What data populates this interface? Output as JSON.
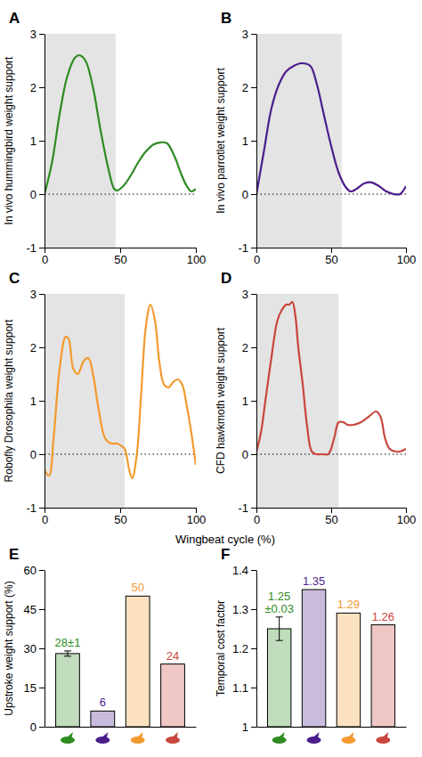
{
  "chart_data": [
    {
      "type": "line",
      "panel": "A",
      "ylabel": "In vivo hummingbird weight support",
      "x": [
        0,
        5,
        10,
        15,
        20,
        23,
        27,
        32,
        37,
        42,
        46,
        48,
        52,
        57,
        62,
        67,
        72,
        77,
        81,
        86,
        90,
        94,
        97,
        100
      ],
      "series": [
        {
          "color": "#2e8b22",
          "values": [
            0,
            0.6,
            1.5,
            2.2,
            2.55,
            2.6,
            2.5,
            2.0,
            1.2,
            0.5,
            0.1,
            0.07,
            0.15,
            0.35,
            0.6,
            0.8,
            0.93,
            0.97,
            0.95,
            0.7,
            0.4,
            0.15,
            0.05,
            0.1
          ]
        }
      ],
      "xlim": [
        0,
        100
      ],
      "xticks": [
        0,
        50,
        100
      ],
      "ylim": [
        -1,
        3
      ],
      "yticks": [
        -1,
        0,
        1,
        2,
        3
      ],
      "shaded_xlim": [
        0,
        47
      ],
      "reference_y": 0
    },
    {
      "type": "line",
      "panel": "B",
      "ylabel": "In vivo parrotlet weight support",
      "x": [
        0,
        5,
        10,
        15,
        20,
        25,
        30,
        36,
        40,
        45,
        50,
        55,
        60,
        63,
        67,
        72,
        77,
        82,
        87,
        92,
        96,
        100
      ],
      "series": [
        {
          "color": "#4b1e8c",
          "values": [
            0,
            0.8,
            1.6,
            2.05,
            2.3,
            2.4,
            2.45,
            2.4,
            2.1,
            1.5,
            0.9,
            0.4,
            0.12,
            0.05,
            0.1,
            0.2,
            0.22,
            0.15,
            0.05,
            0.0,
            0.0,
            0.15
          ]
        }
      ],
      "xlim": [
        0,
        100
      ],
      "xticks": [
        0,
        50,
        100
      ],
      "ylim": [
        -1,
        3
      ],
      "yticks": [
        -1,
        0,
        1,
        2,
        3
      ],
      "shaded_xlim": [
        0,
        57
      ],
      "reference_y": 0
    },
    {
      "type": "line",
      "panel": "C",
      "ylabel": "Robofly Drosophila weight support",
      "xlabel": "Wingbeat cycle (%)",
      "x": [
        0,
        3,
        6,
        10,
        14,
        16,
        19,
        22,
        26,
        29,
        32,
        36,
        40,
        44,
        48,
        51,
        53,
        56,
        58,
        61,
        64,
        67,
        70,
        73,
        76,
        79,
        82,
        85,
        88,
        91,
        94,
        97,
        100
      ],
      "series": [
        {
          "color": "#f29a2e",
          "values": [
            -0.3,
            -0.4,
            0.3,
            1.6,
            2.2,
            2.15,
            1.6,
            1.5,
            1.75,
            1.8,
            1.5,
            0.8,
            0.3,
            0.2,
            0.2,
            0.15,
            0.1,
            -0.3,
            -0.45,
            0,
            1.2,
            2.4,
            2.8,
            2.5,
            1.7,
            1.3,
            1.25,
            1.35,
            1.4,
            1.3,
            0.9,
            0.4,
            -0.2
          ]
        }
      ],
      "xlim": [
        0,
        100
      ],
      "xticks": [
        0,
        50,
        100
      ],
      "ylim": [
        -1,
        3
      ],
      "yticks": [
        -1,
        0,
        1,
        2,
        3
      ],
      "shaded_xlim": [
        0,
        53
      ],
      "reference_y": 0
    },
    {
      "type": "line",
      "panel": "D",
      "ylabel": "CFD hawkmoth weight support",
      "x": [
        0,
        3,
        6,
        10,
        14,
        17,
        20,
        22,
        24,
        26,
        28,
        31,
        34,
        37,
        40,
        44,
        48,
        52,
        55,
        58,
        61,
        65,
        70,
        75,
        80,
        83,
        86,
        89,
        93,
        96,
        100
      ],
      "series": [
        {
          "color": "#c9463d",
          "values": [
            0.05,
            0.4,
            1.0,
            1.8,
            2.5,
            2.7,
            2.8,
            2.8,
            2.85,
            2.6,
            2.0,
            1.3,
            0.5,
            0.05,
            0.0,
            0.0,
            0.0,
            0.3,
            0.6,
            0.6,
            0.55,
            0.55,
            0.6,
            0.7,
            0.8,
            0.7,
            0.3,
            0.1,
            0.05,
            0.05,
            0.1
          ]
        }
      ],
      "xlim": [
        0,
        100
      ],
      "xticks": [
        0,
        50,
        100
      ],
      "ylim": [
        -1,
        3
      ],
      "yticks": [
        -1,
        0,
        1,
        2,
        3
      ],
      "shaded_xlim": [
        0,
        55
      ],
      "reference_y": 0
    },
    {
      "type": "bar",
      "panel": "E",
      "ylabel": "Upstroke weight support (%)",
      "categories": [
        null,
        null,
        null,
        null
      ],
      "values": [
        28,
        6,
        50,
        24
      ],
      "errors": [
        1,
        null,
        null,
        null
      ],
      "value_labels": [
        "28±1",
        "6",
        "50",
        "24"
      ],
      "data_labels": true,
      "colors": [
        "#2e8b22",
        "#4b1e8c",
        "#f29a2e",
        "#c9463d"
      ],
      "ylim": [
        0,
        60
      ],
      "yticks": [
        0,
        15,
        30,
        45,
        60
      ]
    },
    {
      "type": "bar",
      "panel": "F",
      "ylabel": "Temporal cost factor",
      "categories": [
        null,
        null,
        null,
        null
      ],
      "values": [
        1.25,
        1.35,
        1.29,
        1.26
      ],
      "errors": [
        0.03,
        null,
        null,
        null
      ],
      "value_labels": [
        "1.25 ±0.03",
        "1.35",
        "1.29",
        "1.26"
      ],
      "data_labels": true,
      "colors": [
        "#2e8b22",
        "#4b1e8c",
        "#f29a2e",
        "#c9463d"
      ],
      "ylim": [
        1,
        1.4
      ],
      "yticks": [
        1,
        1.1,
        1.2,
        1.3,
        1.4
      ]
    }
  ]
}
